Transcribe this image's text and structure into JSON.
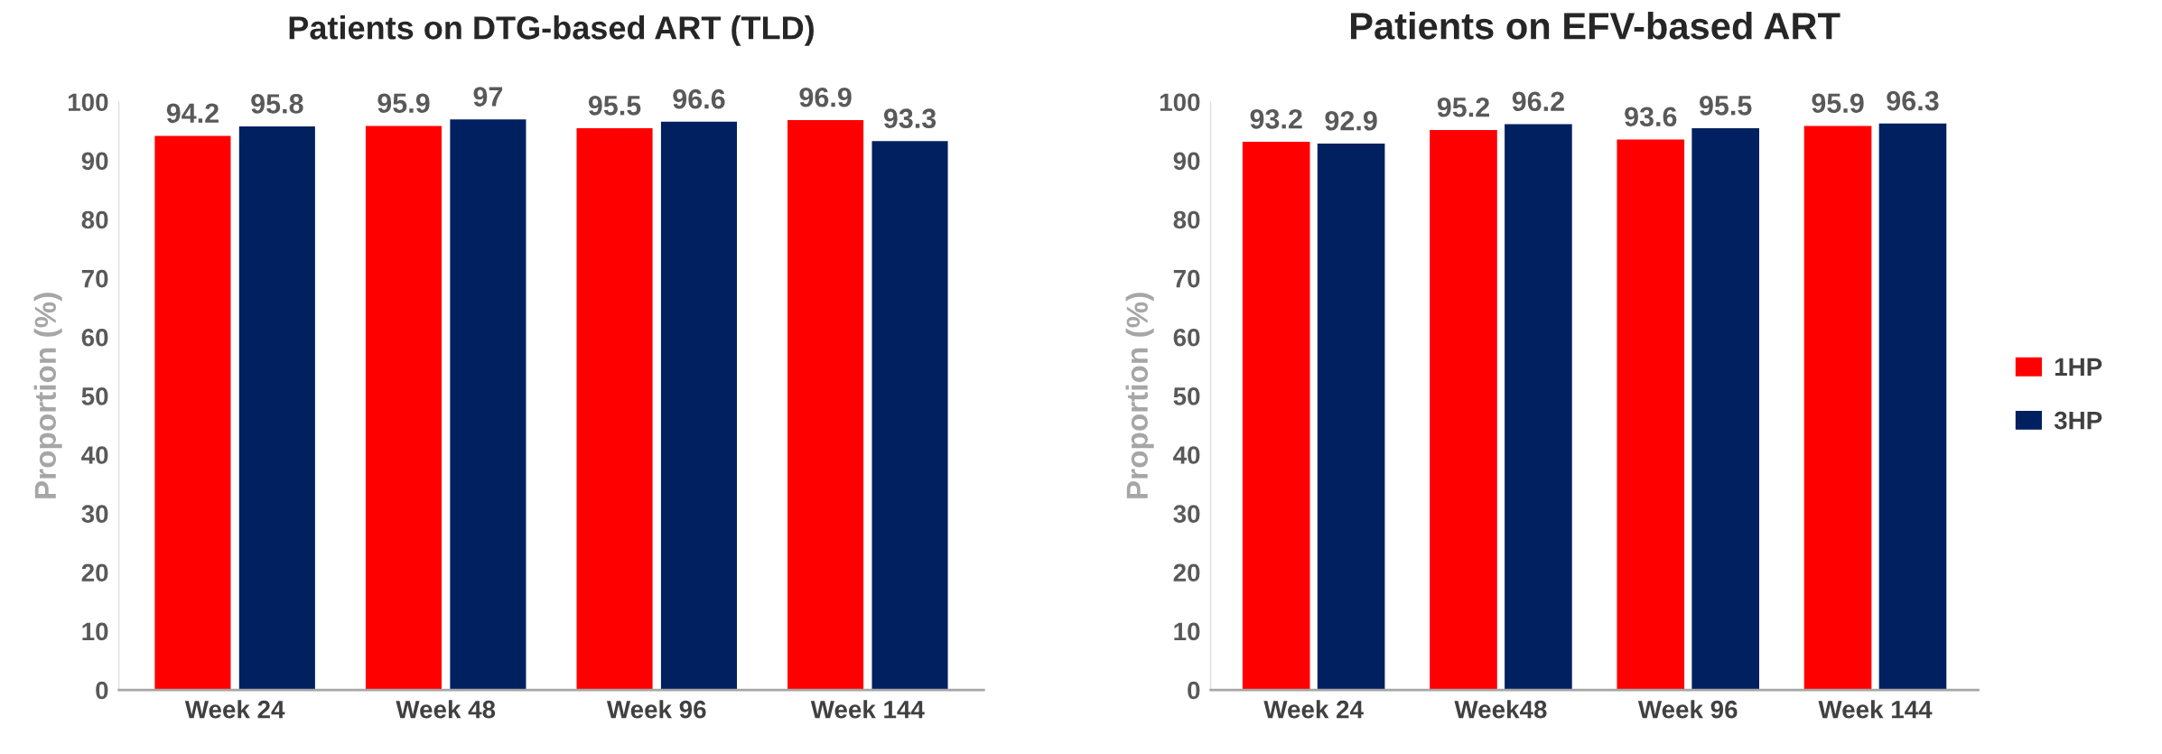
{
  "chart_data": [
    {
      "type": "bar",
      "title": "Patients on DTG-based ART (TLD)",
      "ylabel": "Proportion (%)",
      "categories": [
        "Week 24",
        "Week 48",
        "Week 96",
        "Week 144"
      ],
      "series": [
        {
          "color": "#ff0000",
          "values": [
            94.2,
            95.9,
            95.5,
            96.9
          ]
        },
        {
          "color": "#002060",
          "values": [
            95.8,
            97,
            96.6,
            93.3
          ]
        }
      ],
      "ylim": [
        0,
        100
      ],
      "yticks": [
        0,
        10,
        20,
        30,
        40,
        50,
        60,
        70,
        80,
        90,
        100
      ],
      "data_labels": true,
      "grid": false,
      "legend": false
    },
    {
      "type": "bar",
      "title": "Patients on EFV-based ART",
      "ylabel": "Proportion (%)",
      "categories": [
        "Week 24",
        "Week48",
        "Week 96",
        "Week 144"
      ],
      "series": [
        {
          "name": "1HP",
          "color": "#ff0000",
          "values": [
            93.2,
            95.2,
            93.6,
            95.9
          ]
        },
        {
          "name": "3HP",
          "color": "#002060",
          "values": [
            92.9,
            96.2,
            95.5,
            96.3
          ]
        }
      ],
      "ylim": [
        0,
        100
      ],
      "yticks": [
        0,
        10,
        20,
        30,
        40,
        50,
        60,
        70,
        80,
        90,
        100
      ],
      "data_labels": true,
      "grid": false,
      "legend": "right"
    }
  ]
}
